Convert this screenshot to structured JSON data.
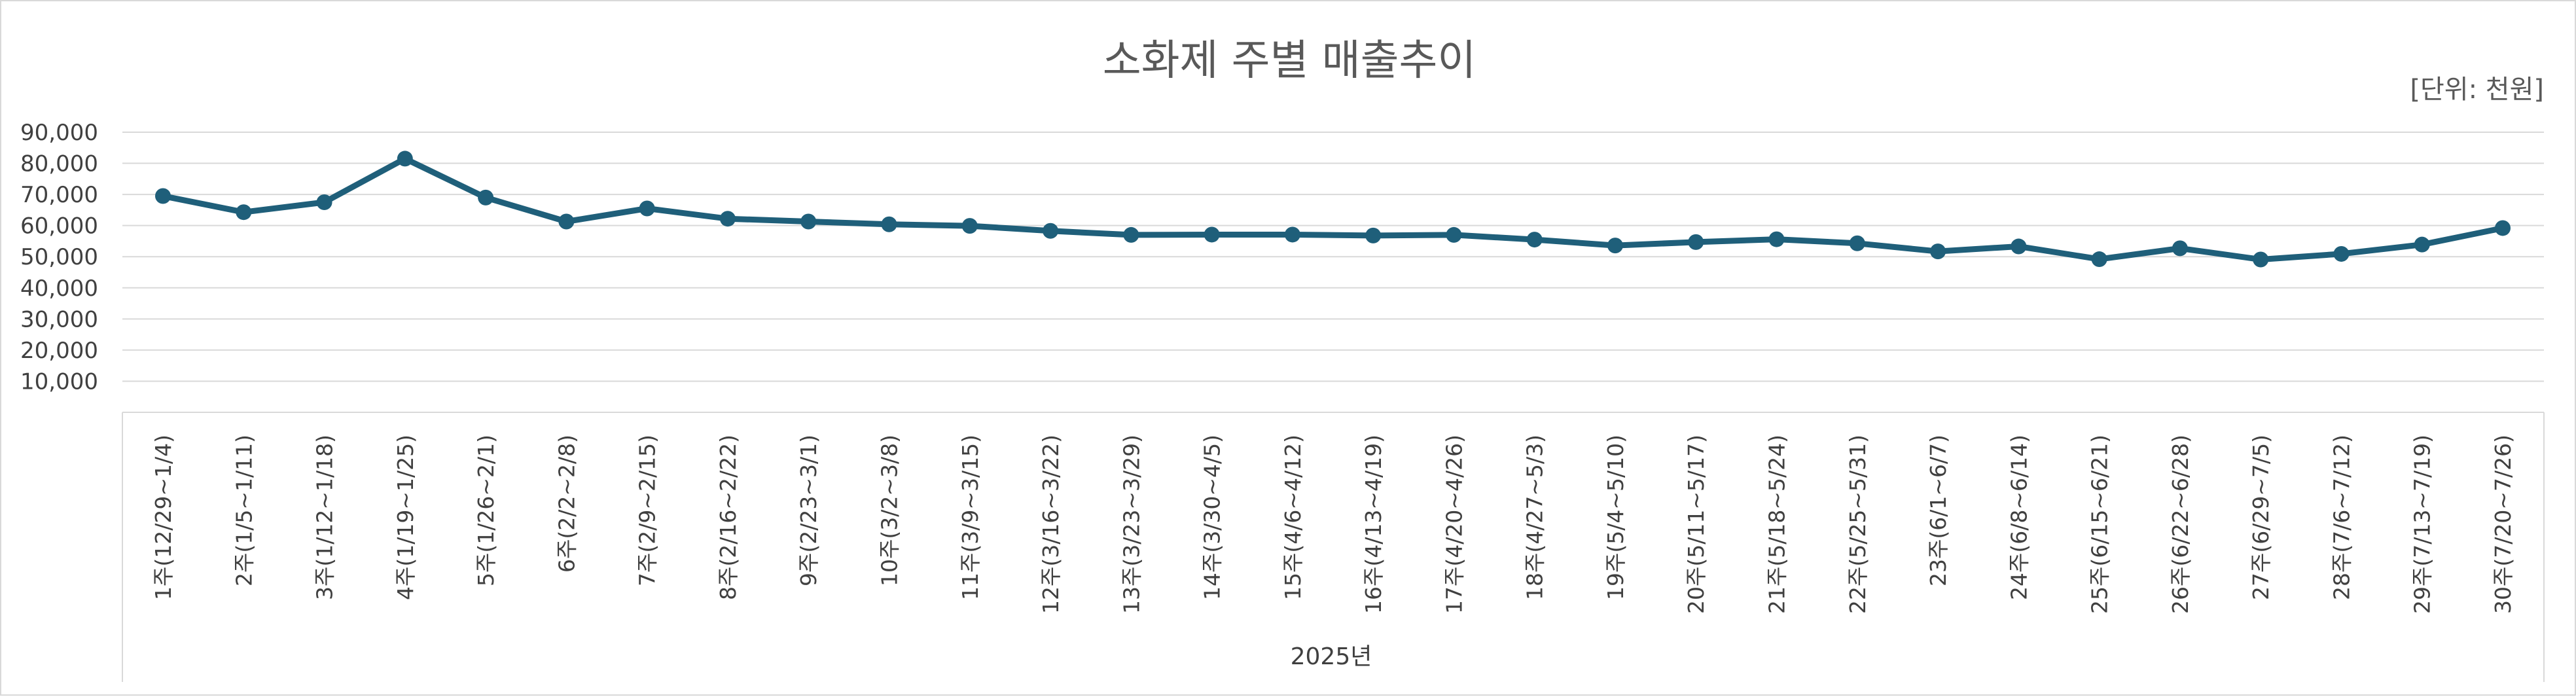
{
  "chart_data": {
    "type": "line",
    "title": "소화제 주별 매출추이",
    "unit_label": "[단위: 천원]",
    "xlabel": "2025년",
    "ylabel": "",
    "ylim": [
      0,
      90000
    ],
    "yticks": [
      "10,000",
      "20,000",
      "30,000",
      "40,000",
      "50,000",
      "60,000",
      "70,000",
      "80,000",
      "90,000"
    ],
    "grid": true,
    "legend": "none",
    "line_color": "#1f5f7a",
    "categories": [
      "1주(12/29~1/4)",
      "2주(1/5~1/11)",
      "3주(1/12~1/18)",
      "4주(1/19~1/25)",
      "5주(1/26~2/1)",
      "6주(2/2~2/8)",
      "7주(2/9~2/15)",
      "8주(2/16~2/22)",
      "9주(2/23~3/1)",
      "10주(3/2~3/8)",
      "11주(3/9~3/15)",
      "12주(3/16~3/22)",
      "13주(3/23~3/29)",
      "14주(3/30~4/5)",
      "15주(4/6~4/12)",
      "16주(4/13~4/19)",
      "17주(4/20~4/26)",
      "18주(4/27~5/3)",
      "19주(5/4~5/10)",
      "20주(5/11~5/17)",
      "21주(5/18~5/24)",
      "22주(5/25~5/31)",
      "23주(6/1~6/7)",
      "24주(6/8~6/14)",
      "25주(6/15~6/21)",
      "26주(6/22~6/28)",
      "27주(6/29~7/5)",
      "28주(7/6~7/12)",
      "29주(7/13~7/19)",
      "30주(7/20~7/26)"
    ],
    "series": [
      {
        "values": [
          69500,
          64300,
          67500,
          81500,
          69000,
          61300,
          65500,
          62200,
          61300,
          60400,
          59900,
          58300,
          57000,
          57100,
          57100,
          56800,
          57000,
          55500,
          53600,
          54700,
          55600,
          54300,
          51700,
          53300,
          49200,
          52700,
          49100,
          50900,
          53900,
          59200
        ]
      }
    ]
  }
}
